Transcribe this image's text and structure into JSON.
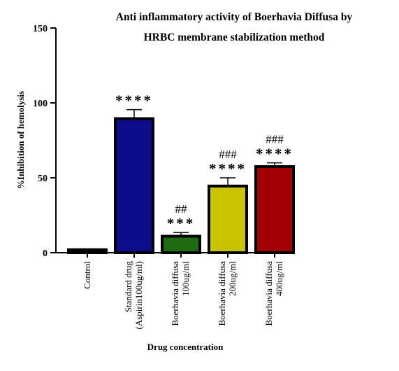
{
  "chart_data": {
    "type": "bar",
    "title_lines": [
      "Anti inflammatory activity of Boerhavia Diffusa by",
      "HRBC membrane stabilization method"
    ],
    "xlabel": "Drug concentration",
    "ylabel": "%Inhibition of hemolysis",
    "ylim": [
      0,
      150
    ],
    "yticks": [
      0,
      50,
      100,
      150
    ],
    "grid": false,
    "legend": "none",
    "categories": [
      {
        "lines": [
          "Control"
        ]
      },
      {
        "lines": [
          "Standard drug",
          "(Aspirin100ug/ml)"
        ]
      },
      {
        "lines": [
          "Boerhavia diffusa",
          "100ug/ml"
        ]
      },
      {
        "lines": [
          "Boerhavia diffusa",
          "200ug/ml"
        ]
      },
      {
        "lines": [
          "Boerhavia diffusa",
          "400ug/ml"
        ]
      }
    ],
    "values": [
      2,
      89.5,
      11,
      44.5,
      57.5
    ],
    "errors": [
      0.5,
      6,
      2.5,
      5.5,
      2.5
    ],
    "colors": [
      "#000000",
      "#0d0d8c",
      "#1f6b12",
      "#c8c400",
      "#a00000"
    ],
    "significance": [
      {
        "stars": "",
        "hash": ""
      },
      {
        "stars": "****",
        "hash": ""
      },
      {
        "stars": "***",
        "hash": "##"
      },
      {
        "stars": "****",
        "hash": "###"
      },
      {
        "stars": "****",
        "hash": "###"
      }
    ]
  }
}
